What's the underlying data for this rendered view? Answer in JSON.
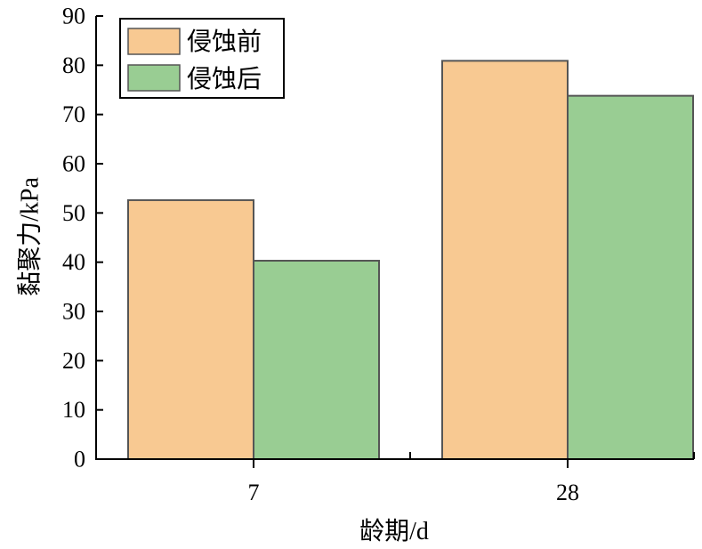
{
  "chart_data": {
    "type": "bar",
    "categories": [
      "7",
      "28"
    ],
    "series": [
      {
        "name": "侵蚀前",
        "values": [
          52.6,
          80.9
        ],
        "color": "#f8c992"
      },
      {
        "name": "侵蚀后",
        "values": [
          40.3,
          73.8
        ],
        "color": "#99cd93"
      }
    ],
    "xlabel": "龄期/d",
    "ylabel": "黏聚力/kPa",
    "ylim": [
      0,
      90
    ],
    "yticks": [
      0,
      10,
      20,
      30,
      40,
      50,
      60,
      70,
      80,
      90
    ],
    "grid": false,
    "legend_position": "top-left"
  }
}
